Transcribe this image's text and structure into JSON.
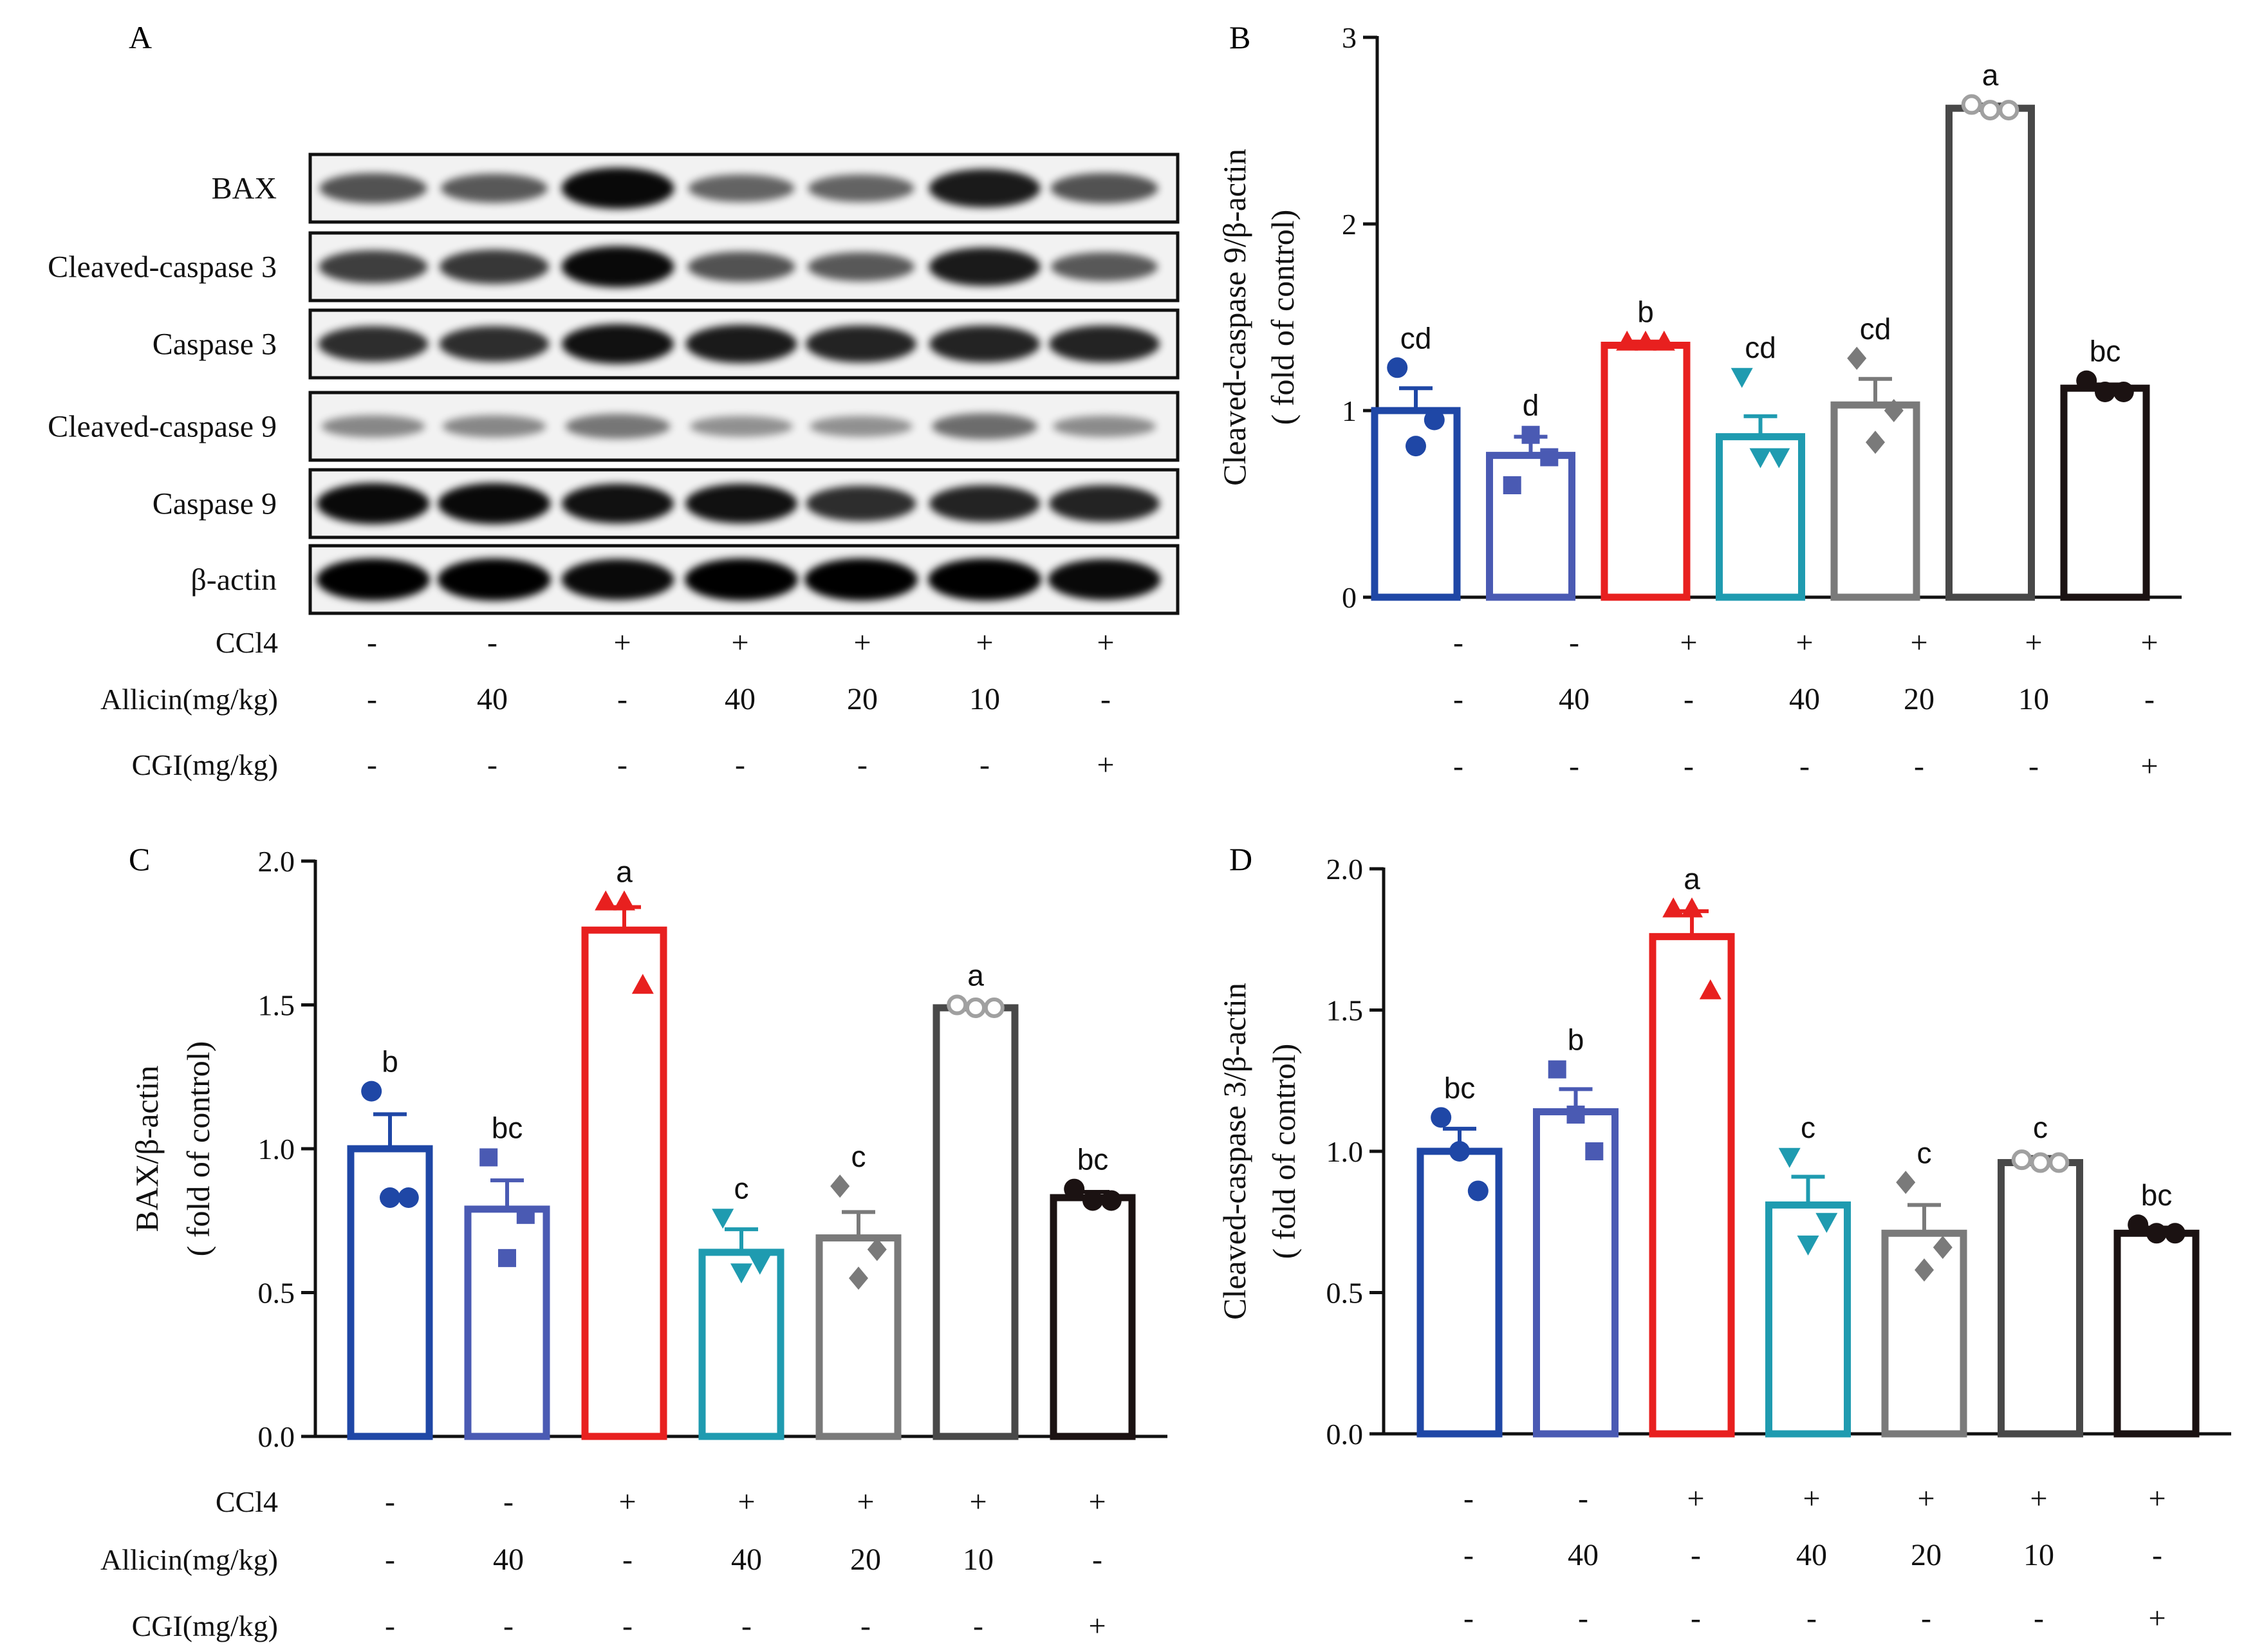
{
  "figure": {
    "panel_letters": [
      "A",
      "B",
      "C",
      "D"
    ]
  },
  "groups": {
    "colors": [
      "#1f47a6",
      "#4a5ab3",
      "#e8201f",
      "#1f9bb0",
      "#7a7a7a",
      "#484848",
      "#1b1212"
    ],
    "markers": [
      "circle",
      "square",
      "triangle-up",
      "triangle-down",
      "diamond",
      "open-circle",
      "circle"
    ]
  },
  "conditions": {
    "row_labels": [
      "CCl4",
      "Allicin(mg/kg)",
      "CGI(mg/kg)"
    ],
    "ccl4": [
      "-",
      "-",
      "+",
      "+",
      "+",
      "+",
      "+"
    ],
    "allicin": [
      "-",
      "40",
      "-",
      "40",
      "20",
      "10",
      "-"
    ],
    "cgi": [
      "-",
      "-",
      "-",
      "-",
      "-",
      "-",
      "+"
    ]
  },
  "blot": {
    "bands": [
      "BAX",
      "Cleaved-caspase 3",
      "Caspase 3",
      "Cleaved-caspase 9",
      "Caspase 9",
      "β-actin"
    ],
    "intensity": [
      [
        0.55,
        0.5,
        0.95,
        0.45,
        0.45,
        0.85,
        0.55
      ],
      [
        0.65,
        0.7,
        0.95,
        0.55,
        0.5,
        0.85,
        0.5
      ],
      [
        0.75,
        0.75,
        0.9,
        0.85,
        0.8,
        0.8,
        0.8
      ],
      [
        0.25,
        0.25,
        0.35,
        0.2,
        0.2,
        0.4,
        0.22
      ],
      [
        0.95,
        0.95,
        0.9,
        0.9,
        0.75,
        0.8,
        0.8
      ],
      [
        1.0,
        1.0,
        0.95,
        1.0,
        1.0,
        1.0,
        0.95
      ]
    ]
  },
  "chart_data": [
    {
      "panel": "B",
      "type": "bar",
      "title": "",
      "ylabel": "Cleaved-caspase 9/β-actin",
      "ylabel2": "( fold of control)",
      "ylim": [
        0,
        3
      ],
      "yticks": [
        "0",
        "1",
        "2",
        "3"
      ],
      "values": [
        1.0,
        0.76,
        1.35,
        0.86,
        1.03,
        2.62,
        1.12
      ],
      "errors": [
        0.12,
        0.1,
        0.02,
        0.11,
        0.14,
        0.02,
        0.02
      ],
      "points": [
        [
          1.23,
          0.81,
          0.95
        ],
        [
          0.6,
          0.87,
          0.75
        ],
        [
          1.37,
          1.37,
          1.37
        ],
        [
          1.18,
          0.75,
          0.75
        ],
        [
          1.28,
          0.83,
          1.0
        ],
        [
          2.64,
          2.61,
          2.61
        ],
        [
          1.16,
          1.1,
          1.1
        ]
      ],
      "letters": [
        "cd",
        "d",
        "b",
        "cd",
        "cd",
        "a",
        "bc"
      ]
    },
    {
      "panel": "C",
      "type": "bar",
      "title": "",
      "ylabel": "BAX/β-actin",
      "ylabel2": "( fold of control)",
      "ylim": [
        0,
        2
      ],
      "yticks": [
        "0.0",
        "0.5",
        "1.0",
        "1.5",
        "2.0"
      ],
      "values": [
        1.0,
        0.79,
        1.76,
        0.64,
        0.69,
        1.49,
        0.83
      ],
      "errors": [
        0.12,
        0.1,
        0.08,
        0.08,
        0.09,
        0.01,
        0.02
      ],
      "points": [
        [
          1.2,
          0.83,
          0.83
        ],
        [
          0.97,
          0.62,
          0.77
        ],
        [
          1.86,
          1.86,
          1.57
        ],
        [
          0.76,
          0.57,
          0.6
        ],
        [
          0.87,
          0.55,
          0.65
        ],
        [
          1.5,
          1.49,
          1.49
        ],
        [
          0.86,
          0.82,
          0.82
        ]
      ],
      "letters": [
        "b",
        "bc",
        "a",
        "c",
        "c",
        "a",
        "bc"
      ]
    },
    {
      "panel": "D",
      "type": "bar",
      "title": "",
      "ylabel": "Cleaved-caspase 3/β-actin",
      "ylabel2": "( fold of control)",
      "ylim": [
        0,
        2
      ],
      "yticks": [
        "0.0",
        "0.5",
        "1.0",
        "1.5",
        "2.0"
      ],
      "values": [
        1.0,
        1.14,
        1.76,
        0.81,
        0.71,
        0.96,
        0.71
      ],
      "errors": [
        0.08,
        0.08,
        0.09,
        0.1,
        0.1,
        0.02,
        0.02
      ],
      "points": [
        [
          1.12,
          1.0,
          0.86
        ],
        [
          1.29,
          1.13,
          1.0
        ],
        [
          1.86,
          1.86,
          1.57
        ],
        [
          0.98,
          0.67,
          0.75
        ],
        [
          0.89,
          0.58,
          0.66
        ],
        [
          0.97,
          0.96,
          0.96
        ],
        [
          0.74,
          0.71,
          0.71
        ]
      ],
      "letters": [
        "bc",
        "b",
        "a",
        "c",
        "c",
        "c",
        "bc"
      ]
    }
  ]
}
